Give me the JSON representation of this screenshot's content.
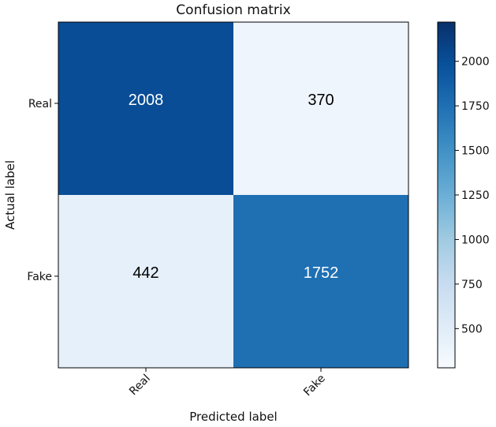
{
  "chart_data": {
    "type": "heatmap",
    "title": "Confusion matrix",
    "xlabel": "Predicted label",
    "ylabel": "Actual label",
    "x_categories": [
      "Real",
      "Fake"
    ],
    "y_categories": [
      "Real",
      "Fake"
    ],
    "values": [
      [
        2008,
        370
      ],
      [
        442,
        1752
      ]
    ],
    "colorbar": {
      "colormap": "Blues",
      "range": [
        280,
        2220
      ],
      "ticks": [
        500,
        750,
        1000,
        1250,
        1500,
        1750,
        2000
      ],
      "tick_labels": [
        "500",
        "750",
        "1000",
        "1250",
        "1500",
        "1750",
        "2000"
      ]
    },
    "grid": false
  }
}
